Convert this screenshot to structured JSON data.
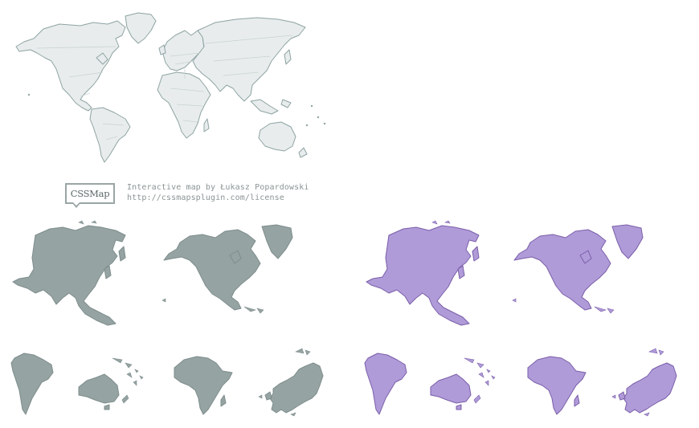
{
  "badge": {
    "label": "CSSMap"
  },
  "credits": {
    "line1": "Interactive map by Łukasz Popardowski",
    "line2": "http://cssmapsplugin.com/license"
  },
  "colors": {
    "world_fill": "#e8ecec",
    "world_stroke": "#8fa3a3",
    "continent_default": "#95a3a2",
    "continent_hover": "#b09bd9",
    "continent_hover_stroke": "#7a5ea8"
  },
  "continents": [
    {
      "name": "asia",
      "icon": "asia-map-icon"
    },
    {
      "name": "north-america",
      "icon": "north-america-map-icon"
    },
    {
      "name": "south-america",
      "icon": "south-america-map-icon"
    },
    {
      "name": "australia",
      "icon": "australia-map-icon"
    },
    {
      "name": "africa",
      "icon": "africa-map-icon"
    },
    {
      "name": "europe",
      "icon": "europe-map-icon"
    }
  ]
}
